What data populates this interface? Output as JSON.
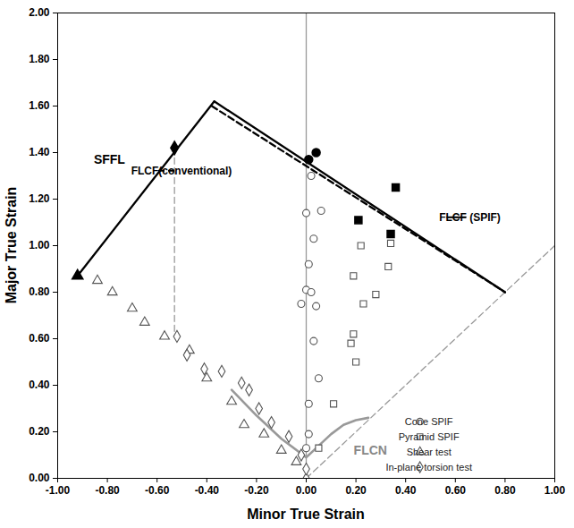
{
  "chart_data": {
    "type": "scatter",
    "x_label": "Minor True Strain",
    "y_label": "Major True Strain",
    "xlim": [
      -1,
      1
    ],
    "xticks": [
      {
        "value": -1,
        "label": "-1.00"
      },
      {
        "value": -0.8,
        "label": "-0.80"
      },
      {
        "value": -0.6,
        "label": "-0.60"
      },
      {
        "value": -0.4,
        "label": "-0.40"
      },
      {
        "value": -0.2,
        "label": "-0.20"
      },
      {
        "value": 0,
        "label": "0.00"
      },
      {
        "value": 0.2,
        "label": "0.20"
      },
      {
        "value": 0.4,
        "label": "0.40"
      },
      {
        "value": 0.6,
        "label": "0.60"
      },
      {
        "value": 0.8,
        "label": "0.80"
      },
      {
        "value": 1,
        "label": "1.00"
      }
    ],
    "ylim": [
      0,
      2
    ],
    "yticks": [
      {
        "value": 0,
        "label": "0.00"
      },
      {
        "value": 0.2,
        "label": "0.20"
      },
      {
        "value": 0.4,
        "label": "0.40"
      },
      {
        "value": 0.6,
        "label": "0.60"
      },
      {
        "value": 0.8,
        "label": "0.80"
      },
      {
        "value": 1,
        "label": "1.00"
      },
      {
        "value": 1.2,
        "label": "1.20"
      },
      {
        "value": 1.4,
        "label": "1.40"
      },
      {
        "value": 1.6,
        "label": "1.60"
      },
      {
        "value": 1.8,
        "label": "1.80"
      },
      {
        "value": 2,
        "label": "2.00"
      }
    ],
    "grid": false,
    "legend": "bottom-right",
    "series": [
      {
        "name": "Cone SPIF",
        "marker": "circle",
        "color": "#555555",
        "x": [
          0.0,
          0.06,
          0.03,
          0.01,
          0.0,
          0.02,
          -0.02,
          0.04,
          0.03,
          0.05,
          0.01,
          0.01,
          0.0,
          0.02
        ],
        "y": [
          1.14,
          1.15,
          1.03,
          0.92,
          0.81,
          0.8,
          0.75,
          0.74,
          0.59,
          0.43,
          0.32,
          0.19,
          0.13,
          1.3
        ]
      },
      {
        "name": "Pyramid SPIF",
        "marker": "square",
        "color": "#555555",
        "x": [
          0.22,
          0.34,
          0.33,
          0.19,
          0.28,
          0.23,
          0.19,
          0.18,
          0.2,
          0.11,
          0.05
        ],
        "y": [
          1.0,
          1.01,
          0.91,
          0.87,
          0.79,
          0.75,
          0.62,
          0.58,
          0.5,
          0.32,
          0.13
        ]
      },
      {
        "name": "Shear test",
        "marker": "triangle",
        "color": "#555555",
        "x": [
          -0.84,
          -0.78,
          -0.7,
          -0.65,
          -0.57,
          -0.47,
          -0.4,
          -0.3,
          -0.25,
          -0.17,
          -0.1,
          -0.04,
          0.0
        ],
        "y": [
          0.85,
          0.8,
          0.73,
          0.67,
          0.61,
          0.55,
          0.43,
          0.33,
          0.23,
          0.19,
          0.12,
          0.07,
          0.0
        ]
      },
      {
        "name": "In-plane torsion test",
        "marker": "diamond",
        "color": "#555555",
        "x": [
          -0.52,
          -0.48,
          -0.41,
          -0.34,
          -0.26,
          -0.23,
          -0.19,
          -0.14,
          -0.07,
          -0.02,
          0.0
        ],
        "y": [
          0.61,
          0.53,
          0.47,
          0.46,
          0.41,
          0.38,
          0.3,
          0.24,
          0.18,
          0.1,
          0.04
        ]
      }
    ],
    "highlighted_points": [
      {
        "marker": "circle",
        "color": "#000000",
        "x": [
          0.01,
          0.04
        ],
        "y": [
          1.37,
          1.4
        ]
      },
      {
        "marker": "square",
        "color": "#000000",
        "x": [
          0.36,
          0.21,
          0.34
        ],
        "y": [
          1.25,
          1.11,
          1.05
        ]
      },
      {
        "marker": "triangle",
        "color": "#000000",
        "x": [
          -0.92
        ],
        "y": [
          0.87
        ]
      },
      {
        "marker": "diamond",
        "color": "#000000",
        "x": [
          -0.53
        ],
        "y": [
          1.42
        ]
      }
    ],
    "lines": [
      {
        "x": [
          0,
          0
        ],
        "y": [
          0,
          2
        ],
        "color": "#999999",
        "line_style": "solid"
      },
      {
        "x": [
          0,
          1
        ],
        "y": [
          0,
          1
        ],
        "color": "#999999",
        "line_style": "dashed"
      },
      {
        "x": [
          -0.53,
          -0.53
        ],
        "y": [
          1.42,
          0.61
        ],
        "color": "#999999",
        "line_style": "dashed"
      },
      {
        "x": [
          -0.92,
          -0.37
        ],
        "y": [
          0.87,
          1.62
        ],
        "color": "#000000",
        "line_style": "solid"
      },
      {
        "x": [
          -0.37,
          0.8
        ],
        "y": [
          1.62,
          0.8
        ],
        "color": "#000000",
        "line_style": "solid"
      },
      {
        "x": [
          -0.38,
          0.8
        ],
        "y": [
          1.6,
          0.8
        ],
        "color": "#000000",
        "line_style": "dashed"
      },
      {
        "x": [
          -0.3,
          -0.2,
          -0.1,
          0.0,
          0.05,
          0.1,
          0.15,
          0.2,
          0.25
        ],
        "y": [
          0.38,
          0.27,
          0.17,
          0.09,
          0.14,
          0.19,
          0.23,
          0.25,
          0.26
        ],
        "color": "#999999",
        "line_style": "solid"
      }
    ],
    "annotations": [
      {
        "text": "SFFL",
        "x": -0.79,
        "y": 1.37,
        "color": "#000000"
      },
      {
        "text": "FLCF(conventional)",
        "x": -0.5,
        "y": 1.32,
        "color": "#000000",
        "line_style": "dashed"
      },
      {
        "text": "FLCF (SPIF)",
        "x": 0.66,
        "y": 1.12,
        "color": "#000000",
        "line_style": "solid"
      },
      {
        "text": "FLCN",
        "x": 0.26,
        "y": 0.12,
        "color": "#888888"
      }
    ]
  }
}
